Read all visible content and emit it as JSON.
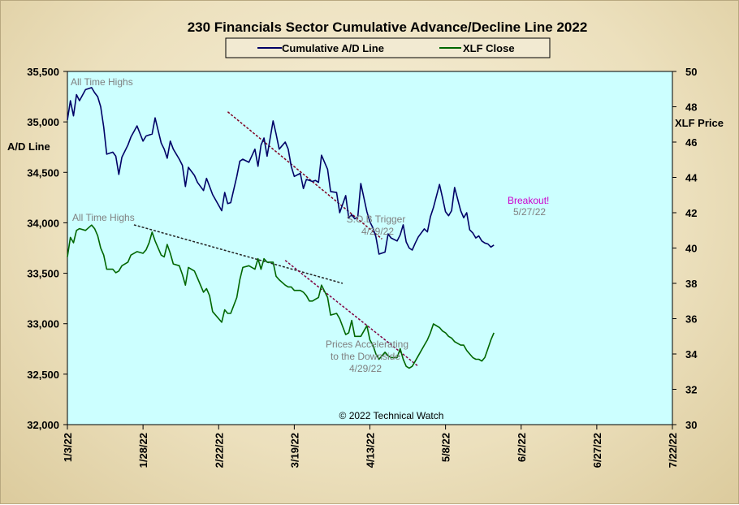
{
  "chart_data": {
    "type": "line",
    "title": "230 Financials  Sector Cumulative  Advance/Decline Line 2022",
    "ylabel_left": "A/D Line",
    "ylabel_right": "XLF Price",
    "ylim_left": [
      32000,
      35500
    ],
    "ylim_right": [
      30,
      50
    ],
    "yticks_left": [
      "32,000",
      "32,500",
      "33,000",
      "33,500",
      "34,000",
      "34,500",
      "35,000",
      "35,500"
    ],
    "yticks_right": [
      "30",
      "32",
      "34",
      "36",
      "38",
      "40",
      "42",
      "44",
      "46",
      "48",
      "50"
    ],
    "xticks": [
      "1/3/22",
      "1/28/22",
      "2/22/22",
      "3/19/22",
      "4/13/22",
      "5/8/22",
      "6/2/22",
      "6/27/22",
      "7/22/22"
    ],
    "xlim_days": [
      0,
      200
    ],
    "grid": false,
    "legend": {
      "placement": "top-center",
      "entries": [
        "Cumulative A/D Line",
        "XLF Close"
      ]
    },
    "copyright": "© 2022 Technical Watch",
    "colors": {
      "plot_bg": "#ccffff",
      "ad_line": "#000066",
      "xlf_line": "#006600",
      "trend_ad": "#800020",
      "trend_mid": "#222222",
      "trend_xlf": "#800040",
      "annot_gray": "#808080",
      "annot_pink": "#cc00cc"
    },
    "series": [
      {
        "name": "Cumulative A/D Line",
        "axis": "left",
        "x": [
          0,
          1,
          2,
          3,
          4,
          6,
          8,
          9,
          10,
          11,
          12,
          13,
          15,
          16,
          17,
          18,
          20,
          21,
          23,
          25,
          26,
          27,
          28,
          29,
          31,
          32,
          33,
          34,
          35,
          37,
          38,
          39,
          40,
          42,
          43,
          45,
          46,
          47,
          48,
          51,
          52,
          53,
          54,
          56,
          57,
          58,
          60,
          62,
          63,
          64,
          65,
          66,
          68,
          69,
          70,
          72,
          73,
          74,
          75,
          77,
          78,
          79,
          80,
          81,
          82,
          83,
          84,
          86,
          87,
          89,
          90,
          92,
          93,
          94,
          95,
          96,
          97,
          99,
          100,
          101,
          102,
          103,
          105,
          106,
          107,
          109,
          110,
          111,
          112,
          113,
          114,
          115,
          116,
          118,
          119,
          120,
          121,
          123,
          124,
          125,
          126,
          127,
          128,
          130,
          131,
          132,
          133,
          134,
          135,
          136,
          137,
          138,
          139,
          140,
          141
        ],
        "y": [
          35020,
          35210,
          35060,
          35270,
          35210,
          35320,
          35340,
          35290,
          35250,
          35150,
          34950,
          34680,
          34700,
          34660,
          34480,
          34650,
          34770,
          34850,
          34960,
          34810,
          34860,
          34870,
          34880,
          35040,
          34790,
          34730,
          34640,
          34810,
          34730,
          34630,
          34570,
          34360,
          34550,
          34470,
          34400,
          34320,
          34440,
          34360,
          34280,
          34120,
          34300,
          34190,
          34200,
          34460,
          34610,
          34630,
          34600,
          34730,
          34560,
          34770,
          34840,
          34660,
          35010,
          34880,
          34730,
          34800,
          34730,
          34560,
          34460,
          34490,
          34340,
          34430,
          34420,
          34410,
          34420,
          34400,
          34670,
          34530,
          34310,
          34300,
          34100,
          34270,
          34050,
          34080,
          34040,
          34060,
          34390,
          34110,
          34010,
          33950,
          33860,
          33690,
          33710,
          33890,
          33850,
          33820,
          33880,
          33980,
          33810,
          33750,
          33730,
          33800,
          33860,
          33940,
          33910,
          34060,
          34150,
          34380,
          34250,
          34110,
          34070,
          34120,
          34350,
          34120,
          34050,
          34100,
          33930,
          33900,
          33850,
          33870,
          33820,
          33800,
          33790,
          33760,
          33780
        ]
      },
      {
        "name": "XLF Close",
        "axis": "right",
        "x": [
          0,
          1,
          2,
          3,
          4,
          6,
          8,
          9,
          10,
          11,
          12,
          13,
          15,
          16,
          17,
          18,
          20,
          21,
          23,
          25,
          26,
          27,
          28,
          29,
          31,
          32,
          33,
          34,
          35,
          37,
          38,
          39,
          40,
          42,
          43,
          45,
          46,
          47,
          48,
          51,
          52,
          53,
          54,
          56,
          57,
          58,
          60,
          62,
          63,
          64,
          65,
          66,
          68,
          69,
          70,
          72,
          73,
          74,
          75,
          77,
          78,
          79,
          80,
          81,
          82,
          83,
          84,
          86,
          87,
          89,
          90,
          92,
          93,
          94,
          95,
          96,
          97,
          99,
          100,
          101,
          102,
          103,
          105,
          106,
          107,
          109,
          110,
          111,
          112,
          113,
          114,
          115,
          116,
          118,
          119,
          120,
          121,
          123,
          124,
          125,
          126,
          127,
          128,
          130,
          131,
          132,
          133,
          134,
          135,
          136,
          137,
          138,
          139,
          140,
          141
        ],
        "y": [
          39.5,
          40.6,
          40.3,
          41.0,
          41.1,
          41.0,
          41.3,
          41.1,
          40.7,
          40.0,
          39.6,
          38.8,
          38.8,
          38.6,
          38.7,
          39.0,
          39.2,
          39.6,
          39.8,
          39.7,
          39.9,
          40.3,
          40.9,
          40.4,
          39.6,
          39.5,
          40.2,
          39.7,
          39.1,
          39.0,
          38.5,
          37.9,
          38.9,
          38.7,
          38.3,
          37.5,
          37.7,
          37.3,
          36.4,
          35.8,
          36.5,
          36.3,
          36.3,
          37.2,
          38.2,
          38.9,
          39.0,
          38.8,
          39.4,
          38.8,
          39.4,
          39.2,
          39.2,
          38.4,
          38.2,
          37.9,
          37.8,
          37.8,
          37.6,
          37.6,
          37.5,
          37.3,
          37.0,
          37.0,
          37.1,
          37.2,
          37.9,
          37.2,
          36.2,
          36.3,
          36.0,
          35.1,
          35.2,
          35.9,
          35.0,
          35.0,
          35.0,
          35.6,
          34.8,
          34.5,
          34.0,
          33.7,
          34.1,
          33.9,
          33.8,
          33.8,
          34.3,
          33.7,
          33.3,
          33.2,
          33.3,
          33.6,
          33.9,
          34.5,
          34.8,
          35.2,
          35.7,
          35.5,
          35.3,
          35.2,
          35.0,
          34.9,
          34.7,
          34.5,
          34.5,
          34.2,
          34.0,
          33.8,
          33.7,
          33.7,
          33.6,
          33.8,
          34.3,
          34.8,
          35.2
        ]
      }
    ],
    "trendlines": [
      {
        "axis": "left",
        "x": [
          53,
          104
        ],
        "y": [
          35100,
          33840
        ],
        "role": "ad_resistance"
      },
      {
        "axis": "left",
        "x": [
          22,
          91
        ],
        "y": [
          33980,
          33400
        ],
        "role": "sob_trigger"
      },
      {
        "axis": "right",
        "x": [
          72,
          116
        ],
        "y": [
          39.3,
          33.3
        ],
        "role": "xlf_downtrend"
      }
    ],
    "annotations": {
      "ath_ad": "All Time Highs",
      "ath_xlf": "All Time Highs",
      "sob_trigger_1": "S.O.B Trigger",
      "sob_trigger_2": "4/29/22",
      "breakout_1": "Breakout!",
      "breakout_2": "5/27/22",
      "accel_1": "Prices Accelerating",
      "accel_2": "to the Downside",
      "accel_3": "4/29/22"
    }
  }
}
